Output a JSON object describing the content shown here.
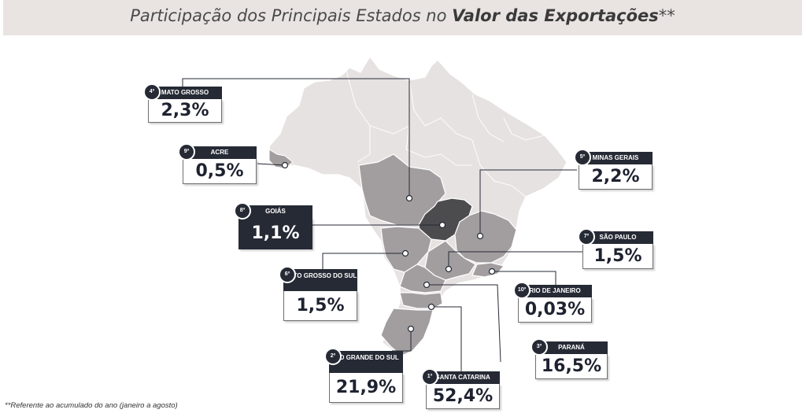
{
  "title": {
    "prefix": "Participação dos Principais Estados no ",
    "bold": "Valor das Exportações",
    "suffix": "**"
  },
  "states": [
    {
      "rank": "4º",
      "name": "MATO GROSSO",
      "value": "2,3%",
      "highlight": false
    },
    {
      "rank": "9º",
      "name": "ACRE",
      "value": "0,5%",
      "highlight": false
    },
    {
      "rank": "8º",
      "name": "GOIÁS",
      "value": "1,1%",
      "highlight": true
    },
    {
      "rank": "6º",
      "name": "MATO GROSSO DO SUL",
      "value": "1,5%",
      "highlight": false
    },
    {
      "rank": "2º",
      "name": "RIO GRANDE DO SUL",
      "value": "21,9%",
      "highlight": false
    },
    {
      "rank": "1º",
      "name": "SANTA CATARINA",
      "value": "52,4%",
      "highlight": false
    },
    {
      "rank": "3º",
      "name": "PARANÁ",
      "value": "16,5%",
      "highlight": false
    },
    {
      "rank": "10º",
      "name": "RIO DE JANEIRO",
      "value": "0,03%",
      "highlight": false
    },
    {
      "rank": "7º",
      "name": "SÃO PAULO",
      "value": "1,5%",
      "highlight": false
    },
    {
      "rank": "5º",
      "name": "MINAS GERAIS",
      "value": "2,2%",
      "highlight": false
    }
  ],
  "colors": {
    "map_base": "#e6e2e2",
    "map_state": "#a29e9f",
    "goias": "#4c4c4e",
    "label_dark": "#262a35"
  },
  "footnote": "**Referente ao acumulado do ano (janeiro a agosto)"
}
